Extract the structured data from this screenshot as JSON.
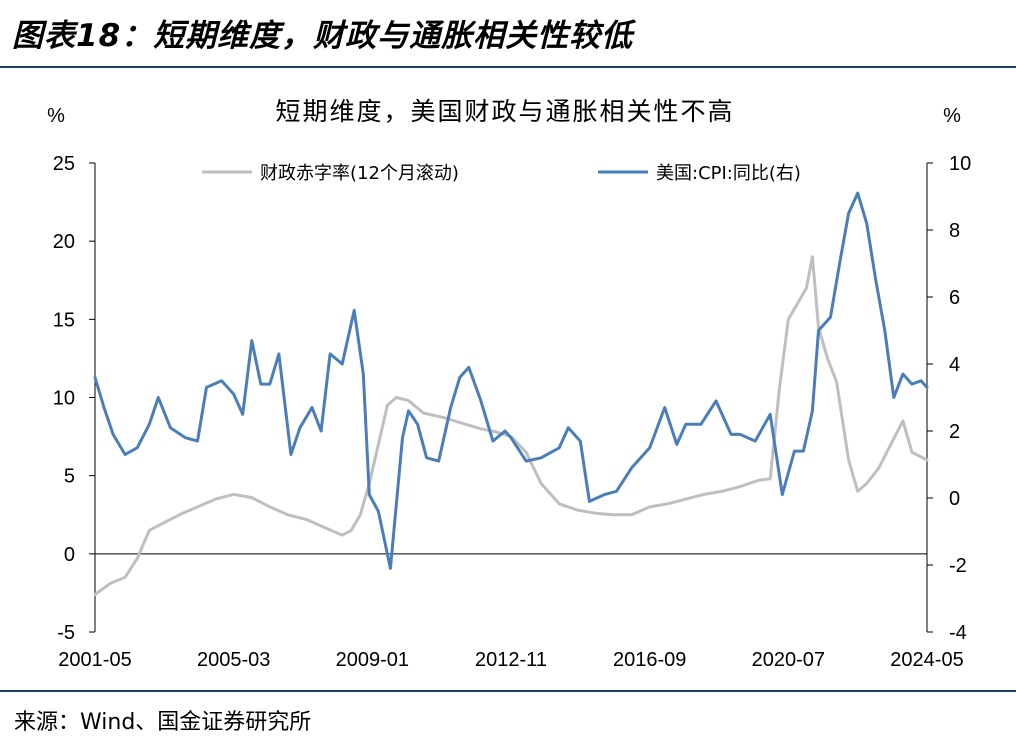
{
  "figure": {
    "title": "图表18：短期维度，财政与通胀相关性较低",
    "source": "来源：Wind、国金证券研究所"
  },
  "chart_data": {
    "type": "line",
    "title": "短期维度，美国财政与通胀相关性不高",
    "y_left_unit": "%",
    "y_right_unit": "%",
    "ylim_left": [
      -5,
      25
    ],
    "ylim_right": [
      -4,
      10
    ],
    "y_left_ticks": [
      "-5",
      "0",
      "5",
      "10",
      "15",
      "20",
      "25"
    ],
    "y_right_ticks": [
      "-4",
      "-2",
      "0",
      "2",
      "4",
      "6",
      "8",
      "10"
    ],
    "x_tick_labels": [
      "2001-05",
      "2005-03",
      "2009-01",
      "2012-11",
      "2016-09",
      "2020-07",
      "2024-05"
    ],
    "x_range": [
      "2001-05",
      "2024-05"
    ],
    "grid": false,
    "legend_position": "top",
    "colors": {
      "deficit": "#bfbfbf",
      "cpi": "#4a7ebb",
      "axis": "#000000"
    },
    "series": [
      {
        "name": "财政赤字率(12个月滚动)",
        "axis": "left",
        "points": [
          [
            "2001-05",
            -2.6
          ],
          [
            "2001-10",
            -1.9
          ],
          [
            "2002-03",
            -1.5
          ],
          [
            "2002-07",
            -0.3
          ],
          [
            "2002-11",
            1.5
          ],
          [
            "2003-04",
            2.0
          ],
          [
            "2003-09",
            2.5
          ],
          [
            "2004-03",
            3.0
          ],
          [
            "2004-09",
            3.5
          ],
          [
            "2005-03",
            3.8
          ],
          [
            "2005-09",
            3.6
          ],
          [
            "2006-03",
            3.0
          ],
          [
            "2006-09",
            2.5
          ],
          [
            "2007-03",
            2.2
          ],
          [
            "2007-09",
            1.7
          ],
          [
            "2008-03",
            1.2
          ],
          [
            "2008-06",
            1.5
          ],
          [
            "2008-09",
            2.5
          ],
          [
            "2008-12",
            4.5
          ],
          [
            "2009-03",
            7.0
          ],
          [
            "2009-06",
            9.5
          ],
          [
            "2009-09",
            10.0
          ],
          [
            "2010-01",
            9.8
          ],
          [
            "2010-06",
            9.0
          ],
          [
            "2011-01",
            8.7
          ],
          [
            "2011-06",
            8.4
          ],
          [
            "2012-01",
            8.0
          ],
          [
            "2012-06",
            7.8
          ],
          [
            "2012-11",
            7.5
          ],
          [
            "2013-04",
            6.5
          ],
          [
            "2013-09",
            4.5
          ],
          [
            "2014-03",
            3.2
          ],
          [
            "2014-09",
            2.8
          ],
          [
            "2015-03",
            2.6
          ],
          [
            "2015-09",
            2.5
          ],
          [
            "2016-03",
            2.5
          ],
          [
            "2016-09",
            3.0
          ],
          [
            "2017-03",
            3.2
          ],
          [
            "2017-09",
            3.5
          ],
          [
            "2018-03",
            3.8
          ],
          [
            "2018-09",
            4.0
          ],
          [
            "2019-03",
            4.3
          ],
          [
            "2019-09",
            4.7
          ],
          [
            "2020-01",
            4.8
          ],
          [
            "2020-04",
            10.5
          ],
          [
            "2020-07",
            15.0
          ],
          [
            "2020-10",
            16.0
          ],
          [
            "2021-01",
            17.0
          ],
          [
            "2021-03",
            19.0
          ],
          [
            "2021-05",
            14.5
          ],
          [
            "2021-08",
            12.5
          ],
          [
            "2021-11",
            11.0
          ],
          [
            "2022-03",
            6.0
          ],
          [
            "2022-06",
            4.0
          ],
          [
            "2022-09",
            4.5
          ],
          [
            "2023-01",
            5.5
          ],
          [
            "2023-05",
            7.0
          ],
          [
            "2023-09",
            8.5
          ],
          [
            "2023-12",
            6.5
          ],
          [
            "2024-05",
            6.0
          ]
        ]
      },
      {
        "name": "美国:CPI:同比(右)",
        "axis": "right",
        "points": [
          [
            "2001-05",
            3.6
          ],
          [
            "2001-08",
            2.7
          ],
          [
            "2001-11",
            1.9
          ],
          [
            "2002-03",
            1.3
          ],
          [
            "2002-07",
            1.5
          ],
          [
            "2002-11",
            2.2
          ],
          [
            "2003-02",
            3.0
          ],
          [
            "2003-06",
            2.1
          ],
          [
            "2003-11",
            1.8
          ],
          [
            "2004-03",
            1.7
          ],
          [
            "2004-06",
            3.3
          ],
          [
            "2004-11",
            3.5
          ],
          [
            "2005-03",
            3.1
          ],
          [
            "2005-06",
            2.5
          ],
          [
            "2005-09",
            4.7
          ],
          [
            "2005-12",
            3.4
          ],
          [
            "2006-03",
            3.4
          ],
          [
            "2006-06",
            4.3
          ],
          [
            "2006-10",
            1.3
          ],
          [
            "2007-01",
            2.1
          ],
          [
            "2007-05",
            2.7
          ],
          [
            "2007-08",
            2.0
          ],
          [
            "2007-11",
            4.3
          ],
          [
            "2008-03",
            4.0
          ],
          [
            "2008-07",
            5.6
          ],
          [
            "2008-10",
            3.7
          ],
          [
            "2008-12",
            0.1
          ],
          [
            "2009-03",
            -0.4
          ],
          [
            "2009-07",
            -2.1
          ],
          [
            "2009-11",
            1.8
          ],
          [
            "2010-01",
            2.6
          ],
          [
            "2010-04",
            2.2
          ],
          [
            "2010-07",
            1.2
          ],
          [
            "2010-11",
            1.1
          ],
          [
            "2011-03",
            2.7
          ],
          [
            "2011-06",
            3.6
          ],
          [
            "2011-09",
            3.9
          ],
          [
            "2012-01",
            2.9
          ],
          [
            "2012-05",
            1.7
          ],
          [
            "2012-09",
            2.0
          ],
          [
            "2012-11",
            1.8
          ],
          [
            "2013-04",
            1.1
          ],
          [
            "2013-09",
            1.2
          ],
          [
            "2014-03",
            1.5
          ],
          [
            "2014-06",
            2.1
          ],
          [
            "2014-10",
            1.7
          ],
          [
            "2015-01",
            -0.1
          ],
          [
            "2015-06",
            0.1
          ],
          [
            "2015-10",
            0.2
          ],
          [
            "2016-03",
            0.9
          ],
          [
            "2016-09",
            1.5
          ],
          [
            "2017-02",
            2.7
          ],
          [
            "2017-06",
            1.6
          ],
          [
            "2017-09",
            2.2
          ],
          [
            "2018-02",
            2.2
          ],
          [
            "2018-07",
            2.9
          ],
          [
            "2018-12",
            1.9
          ],
          [
            "2019-03",
            1.9
          ],
          [
            "2019-08",
            1.7
          ],
          [
            "2020-01",
            2.5
          ],
          [
            "2020-05",
            0.1
          ],
          [
            "2020-09",
            1.4
          ],
          [
            "2020-12",
            1.4
          ],
          [
            "2021-03",
            2.6
          ],
          [
            "2021-05",
            5.0
          ],
          [
            "2021-09",
            5.4
          ],
          [
            "2021-12",
            7.0
          ],
          [
            "2022-03",
            8.5
          ],
          [
            "2022-06",
            9.1
          ],
          [
            "2022-09",
            8.2
          ],
          [
            "2022-12",
            6.5
          ],
          [
            "2023-03",
            5.0
          ],
          [
            "2023-06",
            3.0
          ],
          [
            "2023-09",
            3.7
          ],
          [
            "2023-12",
            3.4
          ],
          [
            "2024-03",
            3.5
          ],
          [
            "2024-05",
            3.3
          ]
        ]
      }
    ]
  }
}
